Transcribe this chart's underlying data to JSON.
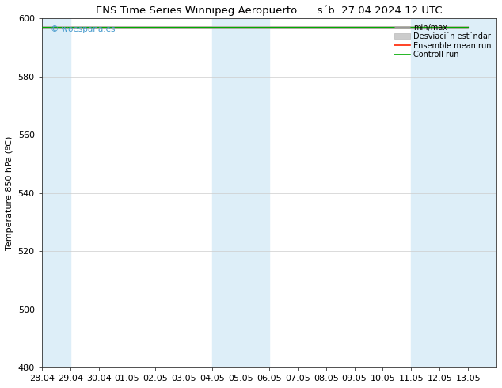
{
  "title": "ENS Time Series Winnipeg Aeropuerto      s´b. 27.04.2024 12 UTC",
  "ylabel": "Temperature 850 hPa (ºC)",
  "ylim": [
    480,
    600
  ],
  "yticks": [
    480,
    500,
    520,
    540,
    560,
    580,
    600
  ],
  "xtick_labels": [
    "28.04",
    "29.04",
    "30.04",
    "01.05",
    "02.05",
    "03.05",
    "04.05",
    "05.05",
    "06.05",
    "07.05",
    "08.05",
    "09.05",
    "10.05",
    "11.05",
    "12.05",
    "13.05"
  ],
  "shaded_regions": [
    {
      "xmin": 0,
      "xmax": 1
    },
    {
      "xmin": 6,
      "xmax": 8
    },
    {
      "xmin": 13,
      "xmax": 16
    }
  ],
  "shade_color": "#ddeef8",
  "watermark": "© woespana.es",
  "watermark_color": "#4499cc",
  "bg_color": "#ffffff",
  "font_size": 8,
  "title_font_size": 9.5
}
